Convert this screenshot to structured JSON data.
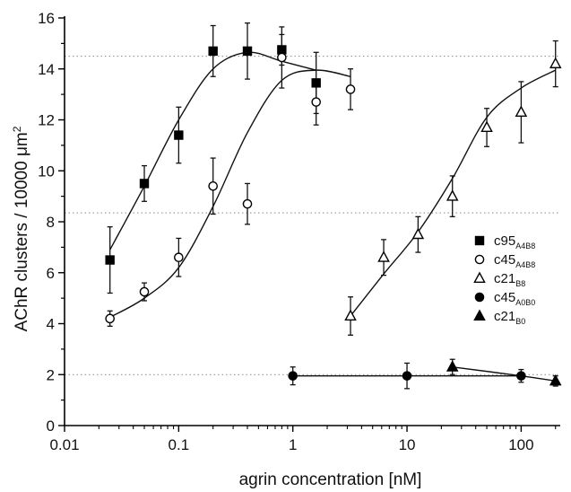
{
  "chart_data": {
    "type": "scatter",
    "title": "",
    "xlabel": "agrin concentration [nM]",
    "ylabel": "AChR clusters / 10000 μm²",
    "ylabel_parts": {
      "prefix": "AChR clusters / 10000 μm",
      "sup": "2"
    },
    "x_scale": "log",
    "xlim": [
      0.01,
      220
    ],
    "ylim": [
      0,
      16
    ],
    "x_ticks": [
      0.01,
      0.1,
      1,
      10,
      100
    ],
    "x_tick_labels": [
      "0.01",
      "0.1",
      "1",
      "10",
      "100"
    ],
    "y_ticks": [
      0,
      2,
      4,
      6,
      8,
      10,
      12,
      14,
      16
    ],
    "y_tick_labels": [
      "0",
      "2",
      "4",
      "6",
      "8",
      "10",
      "12",
      "14",
      "16"
    ],
    "reference_lines_y": [
      14.5,
      8.35,
      2.0
    ],
    "legend": {
      "placement": "right"
    },
    "series": [
      {
        "name": "c95A4B8",
        "label_main": "c95",
        "label_sub": "A4B8",
        "marker": "square-filled",
        "points": [
          {
            "x": 0.025,
            "y": 6.5,
            "err": 1.3
          },
          {
            "x": 0.05,
            "y": 9.5,
            "err": 0.7
          },
          {
            "x": 0.1,
            "y": 11.4,
            "err": 1.1
          },
          {
            "x": 0.2,
            "y": 14.7,
            "err": 1.0
          },
          {
            "x": 0.4,
            "y": 14.7,
            "err": 1.1
          },
          {
            "x": 0.8,
            "y": 14.75,
            "err": 0.6
          },
          {
            "x": 1.6,
            "y": 13.45,
            "err": 1.2
          }
        ],
        "curve": [
          [
            0.025,
            6.9
          ],
          [
            0.05,
            9.4
          ],
          [
            0.1,
            12.0
          ],
          [
            0.2,
            14.0
          ],
          [
            0.4,
            14.65
          ],
          [
            0.8,
            14.3
          ],
          [
            1.6,
            13.95
          ]
        ]
      },
      {
        "name": "c45A4B8",
        "label_main": "c45",
        "label_sub": "A4B8",
        "marker": "circle-open",
        "points": [
          {
            "x": 0.025,
            "y": 4.2,
            "err": 0.3
          },
          {
            "x": 0.05,
            "y": 5.25,
            "err": 0.35
          },
          {
            "x": 0.1,
            "y": 6.6,
            "err": 0.75
          },
          {
            "x": 0.2,
            "y": 9.4,
            "err": 1.1
          },
          {
            "x": 0.4,
            "y": 8.7,
            "err": 0.8
          },
          {
            "x": 0.8,
            "y": 14.45,
            "err": 1.2
          },
          {
            "x": 1.6,
            "y": 12.7,
            "err": 0.9
          },
          {
            "x": 3.2,
            "y": 13.2,
            "err": 0.8
          }
        ],
        "curve": [
          [
            0.025,
            4.25
          ],
          [
            0.05,
            5.0
          ],
          [
            0.1,
            6.2
          ],
          [
            0.2,
            8.6
          ],
          [
            0.4,
            11.5
          ],
          [
            0.8,
            13.55
          ],
          [
            1.6,
            13.95
          ],
          [
            3.2,
            13.7
          ]
        ]
      },
      {
        "name": "c21B8",
        "label_main": "c21",
        "label_sub": "B8",
        "marker": "triangle-open",
        "points": [
          {
            "x": 3.2,
            "y": 4.3,
            "err": 0.75
          },
          {
            "x": 6.25,
            "y": 6.6,
            "err": 0.7
          },
          {
            "x": 12.5,
            "y": 7.5,
            "err": 0.7
          },
          {
            "x": 25,
            "y": 9.0,
            "err": 0.8
          },
          {
            "x": 50,
            "y": 11.7,
            "err": 0.75
          },
          {
            "x": 100,
            "y": 12.3,
            "err": 1.2
          },
          {
            "x": 200,
            "y": 14.2,
            "err": 0.9
          }
        ],
        "curve": [
          [
            3.2,
            4.3
          ],
          [
            6.25,
            5.95
          ],
          [
            12.5,
            7.6
          ],
          [
            25,
            9.7
          ],
          [
            50,
            12.1
          ],
          [
            100,
            13.25
          ],
          [
            200,
            13.95
          ]
        ]
      },
      {
        "name": "c45A0B0",
        "label_main": "c45",
        "label_sub": "A0B0",
        "marker": "circle-filled",
        "points": [
          {
            "x": 1,
            "y": 1.95,
            "err": 0.35
          },
          {
            "x": 10,
            "y": 1.95,
            "err": 0.5
          },
          {
            "x": 100,
            "y": 1.95,
            "err": 0.25
          }
        ],
        "curve": [
          [
            1,
            1.95
          ],
          [
            10,
            1.95
          ],
          [
            100,
            1.95
          ]
        ]
      },
      {
        "name": "c21B0",
        "label_main": "c21",
        "label_sub": "B0",
        "marker": "triangle-filled",
        "points": [
          {
            "x": 25,
            "y": 2.3,
            "err": 0.3
          },
          {
            "x": 200,
            "y": 1.75,
            "err": 0.2
          }
        ],
        "curve": [
          [
            25,
            2.3
          ],
          [
            100,
            1.95
          ],
          [
            200,
            1.75
          ]
        ]
      }
    ]
  }
}
